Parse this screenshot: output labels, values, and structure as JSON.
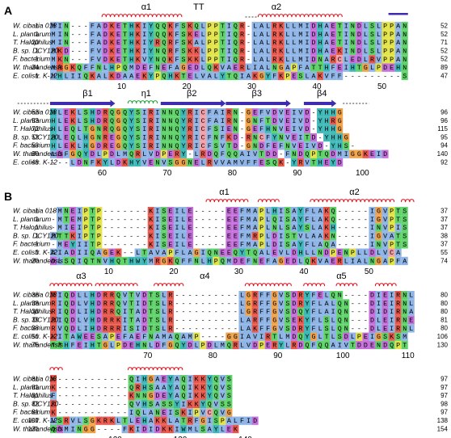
{
  "colors": {
    "helix": "#e0141e",
    "strand": "#3d2bb0",
    "eta": "#22a03a",
    "hydrophobic": "#8fb4e6",
    "positive": "#e85a4e",
    "negative": "#c56fdb",
    "polar": "#5fd36a",
    "cys": "#f5a0a6",
    "gly": "#f0a24a",
    "pro": "#e3e34a",
    "arom": "#3fb8b8"
  },
  "panels": [
    {
      "label": "A",
      "ss_labels": [
        {
          "text": "α1",
          "col": 14
        },
        {
          "text": "TT",
          "col": 22
        },
        {
          "text": "α2",
          "col": 34
        },
        {
          "text": "β1",
          "col": 5
        },
        {
          "text": "η1",
          "col": 14
        },
        {
          "text": "β2",
          "col": 21
        },
        {
          "text": "β3",
          "col": 31
        },
        {
          "text": "β4",
          "col": 41
        }
      ],
      "blocks": [
        {
          "row_ruler": [
            {
              "text": "10",
              "col": 11
            },
            {
              "text": "20",
              "col": 21
            },
            {
              "text": "30",
              "col": 31
            },
            {
              "text": "40",
              "col": 41
            },
            {
              "text": "50",
              "col": 51
            }
          ],
          "seqs": [
            {
              "name": "W. cibaria 018",
              "start": "1",
              "seq": "MIN---FADKETHKIYQQKFSKQLPPTIQR-LALRKLLMIDHAETINDLSLPPAN",
              "end": "52"
            },
            {
              "name": "L. plantarum",
              "start": "1",
              "seq": "MIN---FADKETHKIYQQKFSKELPPTIQR-LALRKLLMIDHAETINDLSLPPAN",
              "end": "52"
            },
            {
              "name": "T. Halophilus",
              "start": "20",
              "seq": "MIN---FADKETHKIYRQRFSKALPPTIQR-LALRKLLMIDHAETINDLSLPPAN",
              "end": "71"
            },
            {
              "name": "B. sp. DCY120",
              "start": "1",
              "seq": "MKD---FVDKETHKIYNQRFSKKLPPTIQR-LALRKLLMIDHAEKINDLSLPPAN",
              "end": "52"
            },
            {
              "name": "F. bacterium",
              "start": "1",
              "seq": "MKN---FVDKETHKVYNQKFSKKLPPTIQR-LALRKLLMIDNARCLEDLRVPPAN",
              "end": "52"
            },
            {
              "name": "W. thailandensis",
              "start": "34",
              "seq": "MRGKQFFNLHPQMDEFNEFAGEDLQKVAERLIALNGAPFATTHFEIHTGLPDEHN",
              "end": "89"
            },
            {
              "name": "E. colistr. K-12",
              "start": "1",
              "seq": "MHLIIQKALKDAAEKYPQHKTELVALYTQIAKGYFKPESLAKVFF---------S",
              "end": "47"
            }
          ]
        },
        {
          "row_ruler": [
            {
              "text": "60",
              "col": 8
            },
            {
              "text": "70",
              "col": 18
            },
            {
              "text": "80",
              "col": 28
            },
            {
              "text": "90",
              "col": 38
            },
            {
              "text": "100",
              "col": 48
            }
          ],
          "seqs": [
            {
              "name": "W. cibaria 018",
              "start": "53",
              "seq": "HLEKLSHDRQGQYSIRINNQYRICFAIRN-GEFVDVEIVD-YHHG",
              "end": "96"
            },
            {
              "name": "L. plantarum",
              "start": "53",
              "seq": "HLEKLSHDRQGQYSIRINNQYRICFAIRN-GNFTDVEIVD-YHRG",
              "end": "96"
            },
            {
              "name": "T. Halophilus",
              "start": "72",
              "seq": "HLEQLTGNRQGQYSIRINNQYRICFSIEN-GEFHNVEIVD-YHHG",
              "end": "115"
            },
            {
              "name": "B. sp. DCY120",
              "start": "53",
              "seq": "HLEQLHGNREGQYSIRINNQYRICFNFKD-RNCFYNVEITD-YHHG",
              "end": "95"
            },
            {
              "name": "F. bacterium",
              "start": "53",
              "seq": "HLEKLHGDREGQYSIRINNQYRICFSVTD-GNDFEFNVEIVD-YHS-",
              "end": "94"
            },
            {
              "name": "W. thailandensis",
              "start": "90",
              "seq": "LDFGQYDLPDLMQRLVDPERY-LRDQFQQAIVTDD-FNDQPTQDMIGGKEID",
              "end": "140"
            },
            {
              "name": "E. colistr. K-12",
              "start": "48",
              "seq": "---LDNFKYLDKHYVENVSGGNELRVVAMVFFESQK-YRVTHEYD",
              "end": "92"
            }
          ]
        }
      ]
    },
    {
      "label": "B",
      "ss_labels": [
        {
          "text": "α1",
          "col": 26
        },
        {
          "text": "α2",
          "col": 46
        },
        {
          "text": "α3",
          "col": 4
        },
        {
          "text": "α4",
          "col": 23
        },
        {
          "text": "α5",
          "col": 44
        }
      ],
      "blocks": [
        {
          "row_ruler": [
            {
              "text": "10",
              "col": 9
            },
            {
              "text": "20",
              "col": 19
            },
            {
              "text": "30",
              "col": 29
            },
            {
              "text": "40",
              "col": 39
            },
            {
              "text": "50",
              "col": 49
            }
          ],
          "seqs": [
            {
              "name": "W. cibaria 018",
              "start": "1",
              "seq": "-MNEIPTP-------KISEILE-----EEFMAPLHISAYFLAKQ-----IGVPTS",
              "end": "37"
            },
            {
              "name": "L. plantarum",
              "start": "1",
              "seq": "-MTEMPTP-------KISEILE-----EEFMAPLQISAYFLAKQ-----IGVPTS",
              "end": "37"
            },
            {
              "name": "T. Halophilus",
              "start": "1",
              "seq": "-MIEIPTP-------KISEILE-----EEFMAPLNLSAYSLAKH-----INVPIS",
              "end": "37"
            },
            {
              "name": "B. sp. DCY120",
              "start": "1",
              "seq": "MTTKIPTP-------KISEILE-----EEFMRPLDISTVLAAKN-----IGVATS",
              "end": "38"
            },
            {
              "name": "F. bacterium",
              "start": "1",
              "seq": "-MEYIITP-------KISEILE-----EEFMAPLDISAYFLAQA-----INVPTS",
              "end": "37"
            },
            {
              "name": "E. colistr. K-12",
              "start": "3",
              "seq": "AIADIIQAGEK--LTAVAPFLAGIQNEEQYTQALEVLDHLLNDPENPLLDLVCA",
              "end": "55"
            },
            {
              "name": "W. thailandensis",
              "start": "20",
              "seq": "DLSQIQTNVHQTHWYMRGKQFFNLHPQMDEFNEFAGEDLQKVAERLIALNGAPFA",
              "end": "74"
            }
          ]
        },
        {
          "row_ruler": [
            {
              "text": "70",
              "col": 15
            },
            {
              "text": "80",
              "col": 25
            },
            {
              "text": "90",
              "col": 35
            },
            {
              "text": "100",
              "col": 45
            },
            {
              "text": "110",
              "col": 55
            }
          ],
          "seqs": [
            {
              "name": "W. cibaria 018",
              "start": "38",
              "seq": "RIQDLLHDRRQVTVDTSLR----------LGRFFGVSDRYFELQN----DIEIRNL",
              "end": "80"
            },
            {
              "name": "L. plantarum",
              "start": "38",
              "seq": "RIQDLVHDRRQVTIDTSLR----------LGRFFGVSDRYFLALQN---DIEIRNL",
              "end": "80"
            },
            {
              "name": "T. Halophilus",
              "start": "38",
              "seq": "RIQDLIHDRRQITADTSLR----------LGRFFGVSDQYFLAIQN---DIDIRNA",
              "end": "80"
            },
            {
              "name": "B. sp. DCY120",
              "start": "39",
              "seq": "RIQDLVHDRRKITADTSLR----------LARFFGVSEKYFLSLQN---DLEIRNE",
              "end": "81"
            },
            {
              "name": "F. bacterium",
              "start": "38",
              "seq": "RVQDLIHDRRRISIDTSLR----------LAKFFGVSDRYFLSLQN---DLEIRNL",
              "end": "80"
            },
            {
              "name": "E. colistr. K-12",
              "start": "56",
              "seq": "KITAWEESAPEFAEFNAMAQAMP----GGIAVIRTLMDQYGLTLSDLPEIGSKSM",
              "end": "106"
            },
            {
              "name": "W. thailandensis",
              "start": "75",
              "seq": "TTHFEIHTGLPDEHNLDFGQYDLPDLMQRLVDPERYLRDQFQQAIVTDDENDQPT",
              "end": "130"
            }
          ]
        },
        {
          "row_ruler": [
            {
              "text": "120",
              "col": 10
            },
            {
              "text": "130",
              "col": 20
            },
            {
              "text": "140",
              "col": 30
            }
          ],
          "seqs": [
            {
              "name": "W. cibaria 018",
              "start": "81",
              "seq": "K-----------QIHGAEYAQIKKYQVS",
              "end": "97"
            },
            {
              "name": "L. plantarum",
              "start": "81",
              "seq": "K-----------QRHSAAYAQIKKYQVS",
              "end": "97"
            },
            {
              "name": "T. Halophilus",
              "start": "81",
              "seq": "F-----------KNNGDEYAQIKKYQVS",
              "end": "97"
            },
            {
              "name": "B. sp. DCY120",
              "start": "82",
              "seq": "K-----------QVHSASSYIKKYQVSS",
              "end": "98"
            },
            {
              "name": "F. bacterium",
              "start": "81",
              "seq": "K-----------IQLANEISKIPVCQVG",
              "end": "97"
            },
            {
              "name": "E. colistr. K-12",
              "start": "107",
              "seq": "VSRVLSGKRKLTLEHAKKLATRFGISPALFID",
              "end": "138"
            },
            {
              "name": "W. thailandensis",
              "start": "131",
              "seq": "QDMINGG----FKIDIDKKIWMLSAYLEK",
              "end": "154"
            }
          ]
        }
      ]
    }
  ]
}
